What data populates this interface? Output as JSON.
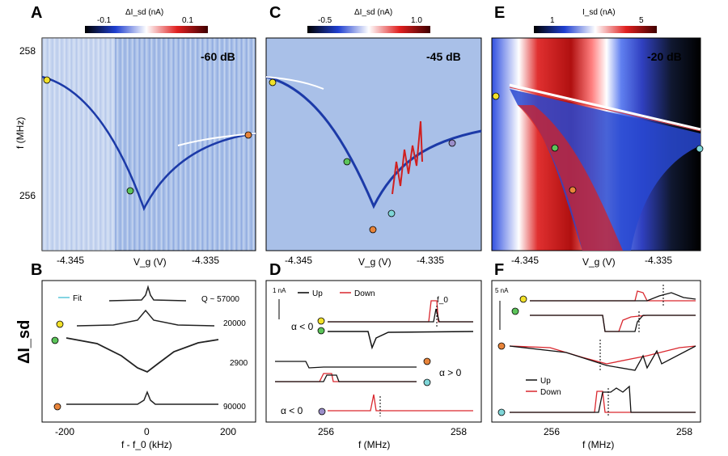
{
  "panels": {
    "A": {
      "label": "A",
      "colorbar_title": "ΔI_sd (nA)",
      "cb_min": "-0.1",
      "cb_max": "0.1",
      "power": "-60 dB",
      "xticks": [
        "-4.345",
        "-4.335"
      ],
      "yticks": [
        "258",
        "256"
      ],
      "xlabel": "V_g (V)",
      "ylabel": "f (MHz)"
    },
    "B": {
      "label": "B",
      "ylabel": "ΔI_sd",
      "xlabel": "f - f_0 (kHz)",
      "xticks": [
        "-200",
        "0",
        "200"
      ],
      "legend": "Fit",
      "q_values": [
        "Q ~ 57000",
        "20000",
        "2900",
        "90000"
      ]
    },
    "C": {
      "label": "C",
      "colorbar_title": "ΔI_sd (nA)",
      "cb_min": "-0.5",
      "cb_max": "1.0",
      "power": "-45 dB",
      "xticks": [
        "-4.345",
        "-4.335"
      ],
      "xlabel": "V_g (V)"
    },
    "D": {
      "label": "D",
      "scale": "1 nA",
      "legend_up": "Up",
      "legend_down": "Down",
      "f0": "f_0",
      "alpha_neg": "α < 0",
      "alpha_pos": "α > 0",
      "alpha_neg2": "α < 0",
      "xticks": [
        "256",
        "258"
      ],
      "xlabel": "f (MHz)"
    },
    "E": {
      "label": "E",
      "colorbar_title": "I_sd (nA)",
      "cb_min": "1",
      "cb_max": "5",
      "power": "-20 dB",
      "xticks": [
        "-4.345",
        "-4.335"
      ],
      "xlabel": "V_g (V)"
    },
    "F": {
      "label": "F",
      "scale": "5 nA",
      "legend_up": "Up",
      "legend_down": "Down",
      "xticks": [
        "256",
        "258"
      ],
      "xlabel": "f (MHz)"
    }
  },
  "colors": {
    "yellow": "#f2e12a",
    "green": "#5cc45a",
    "orange": "#e8843a",
    "cyan": "#7fd6d8",
    "purple": "#9b8ec9",
    "fit": "#5bc6d8",
    "down": "#d9272e"
  }
}
